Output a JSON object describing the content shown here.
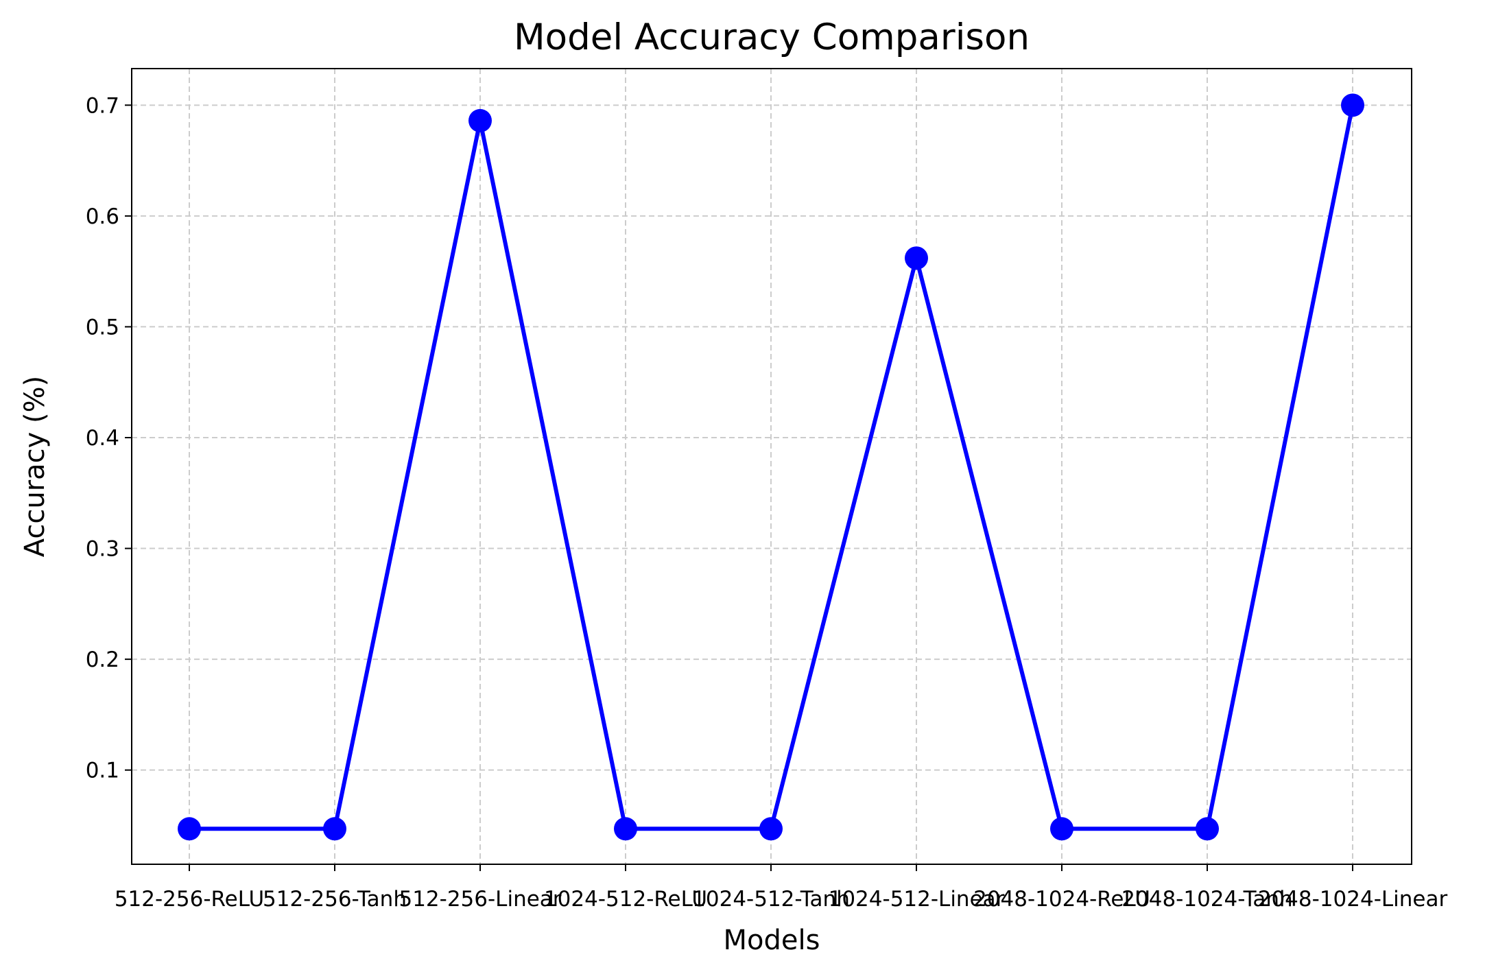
{
  "chart_data": {
    "type": "line",
    "title": "Model Accuracy Comparison",
    "xlabel": "Models",
    "ylabel": "Accuracy (%)",
    "categories": [
      "512-256-ReLU",
      "512-256-Tanh",
      "512-256-Linear",
      "1024-512-ReLU",
      "1024-512-Tanh",
      "1024-512-Linear",
      "2048-1024-ReLU",
      "2048-1024-Tanh",
      "2048-1024-Linear"
    ],
    "series": [
      {
        "values": [
          0.047,
          0.047,
          0.686,
          0.047,
          0.047,
          0.562,
          0.047,
          0.047,
          0.7
        ]
      }
    ],
    "yticks": [
      "0.1",
      "0.2",
      "0.3",
      "0.4",
      "0.5",
      "0.6",
      "0.7"
    ],
    "ylim": [
      0.015,
      0.733
    ],
    "grid": true,
    "line_color": "#0000ff",
    "marker": "circle"
  }
}
